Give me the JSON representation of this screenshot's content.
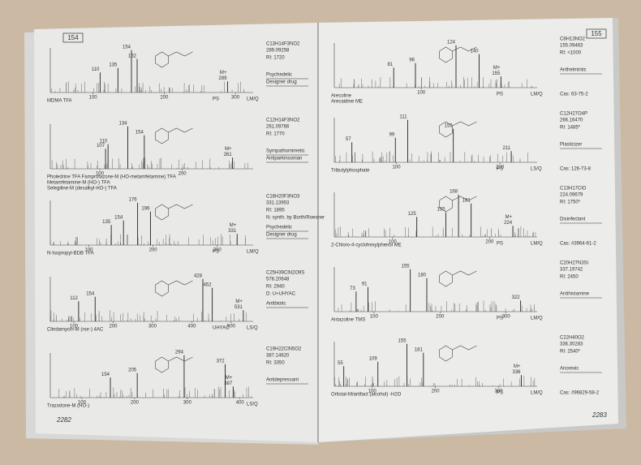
{
  "pages": [
    {
      "number": "154",
      "folio": "2282",
      "entries": [
        {
          "names": [
            "MDMA TFA"
          ],
          "peaks": [
            110,
            135,
            154,
            162,
            289
          ],
          "mplus": "M+",
          "axis": [
            100,
            200,
            300
          ],
          "ps": "PS",
          "scale": "LM/Q",
          "formula": "C13H14F3NO2",
          "mass": "289.09258",
          "ri": "RI: 1720",
          "categories": [
            "Psychedelic",
            "Designer drug"
          ]
        },
        {
          "names": [
            "Pholedrine TFA   Famprofazone-M (HO-metamfetamine) TFA",
            "Metamfetamine-M (HO-) TFA",
            "Selegiline-M (desalkyl-HO-) TFA"
          ],
          "peaks": [
            107,
            110,
            134,
            154,
            261
          ],
          "mplus": "M+",
          "axis": [
            100,
            200
          ],
          "formula": "C12H14F3NO2",
          "mass": "261.09766",
          "ri": "RI: 1770",
          "categories": [
            "Sympathomimetic",
            "Antiparkinsonian"
          ]
        },
        {
          "names": [
            "N-Isopropyl-BDB TFA"
          ],
          "peaks": [
            135,
            154,
            176,
            196,
            331
          ],
          "mplus": "M+",
          "axis": [
            100,
            200,
            300
          ],
          "ps": "PS",
          "scale": "LM/Q",
          "formula": "C16H20F3NO3",
          "mass": "331.13953",
          "ri": "RI: 1895",
          "categories": [
            "Psychedelic",
            "Designer drug"
          ],
          "note": "N: synth. by Borth/Roesner"
        },
        {
          "names": [
            "Clindamycin-M (nor-) 4AC"
          ],
          "peaks": [
            112,
            154,
            428,
            452,
            531
          ],
          "mplus": "M+",
          "axis": [
            100,
            200,
            300,
            400,
            500
          ],
          "ps": "UHYAC",
          "scale": "LS/Q",
          "formula": "C25H39ClN2O9S",
          "mass": "578.20648",
          "ri": "RI: 2940",
          "note": "D: U+UHYAC",
          "categories": [
            "Antibiotic"
          ]
        },
        {
          "names": [
            "Trazodone-M (HO-)"
          ],
          "peaks": [
            154,
            205,
            294,
            372,
            387
          ],
          "mplus": "M+",
          "axis": [
            100,
            200,
            300,
            400
          ],
          "scale": "LS/Q",
          "formula": "C19H22ClN5O2",
          "mass": "387.14620",
          "ri": "RI: 3350",
          "categories": [
            "Antidepressant"
          ]
        }
      ]
    },
    {
      "number": "155",
      "folio": "2283",
      "entries": [
        {
          "names": [
            "Arecoline",
            "Arecaidine ME"
          ],
          "peaks": [
            81,
            96,
            124,
            140,
            155
          ],
          "mplus": "M+",
          "axis": [
            100
          ],
          "ps": "PS",
          "scale": "LM/Q",
          "formula": "C8H13NO2",
          "mass": "155.09463",
          "ri": "RI: <1000",
          "categories": [
            "Anthelmintic"
          ],
          "cas": "Cas: 63-75-2"
        },
        {
          "names": [
            "Tributylphosphate"
          ],
          "peaks": [
            57,
            99,
            111,
            155,
            211
          ],
          "axis": [
            100,
            200
          ],
          "ps": "PS",
          "scale": "LS/Q",
          "formula": "C12H27O4P",
          "mass": "266.16470",
          "ri": "RI: 1485*",
          "categories": [
            "Plasticizer"
          ],
          "cas": "Cas: 126-73-8"
        },
        {
          "names": [
            "2-Chloro-4-cyclohexylphenol ME"
          ],
          "peaks": [
            125,
            155,
            168,
            181,
            224
          ],
          "mplus": "M+",
          "axis": [
            100,
            200
          ],
          "ps": "PS",
          "scale": "LM/Q",
          "formula": "C13H17ClO",
          "mass": "224.09679",
          "ri": "RI: 1750*",
          "categories": [
            "Disinfectant"
          ],
          "cas": "Cas: #3964-61-2"
        },
        {
          "names": [
            "Antazoline TMS"
          ],
          "peaks": [
            73,
            91,
            155,
            180,
            322
          ],
          "axis": [
            100,
            200,
            300
          ],
          "ps": "PS",
          "scale": "LM/Q",
          "formula": "C20H27N3Si",
          "mass": "337.19742",
          "ri": "RI: 2450",
          "categories": [
            "Antihistamine"
          ]
        },
        {
          "names": [
            "Orlistat-M/artifact (alcohol) -H2O"
          ],
          "peaks": [
            55,
            109,
            155,
            181,
            336
          ],
          "mplus": "M+",
          "axis": [
            100,
            200,
            300
          ],
          "ps": "PS",
          "scale": "LM/Q",
          "formula": "C22H40O2",
          "mass": "336.30283",
          "ri": "RI: 2540*",
          "categories": [
            "Anorexic"
          ],
          "cas": "Cas: #96829-58-2"
        }
      ]
    }
  ]
}
